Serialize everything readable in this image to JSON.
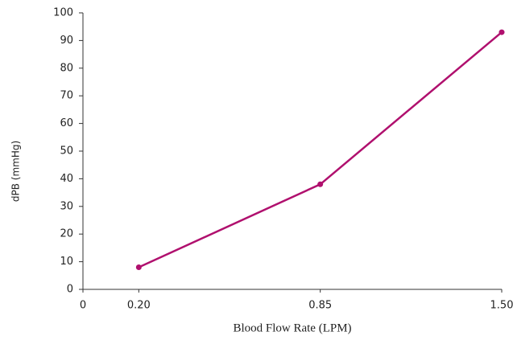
{
  "chart_data": {
    "type": "line",
    "xlabel": "Blood Flow Rate (LPM)",
    "ylabel": "dPB (mmHg)",
    "x": [
      0.2,
      0.85,
      1.5
    ],
    "series": [
      {
        "color": "#b0106e",
        "values": [
          8,
          38,
          93
        ]
      }
    ],
    "xlim": [
      0,
      1.5
    ],
    "xticks": [
      0,
      {
        "value": 0.2,
        "label": "0.20"
      },
      {
        "value": 0.85,
        "label": "0.85"
      },
      {
        "value": 1.5,
        "label": "1.50"
      }
    ],
    "ylim": [
      0,
      100
    ],
    "yticks": [
      0,
      10,
      20,
      30,
      40,
      50,
      60,
      70,
      80,
      90,
      100
    ],
    "grid": false
  }
}
